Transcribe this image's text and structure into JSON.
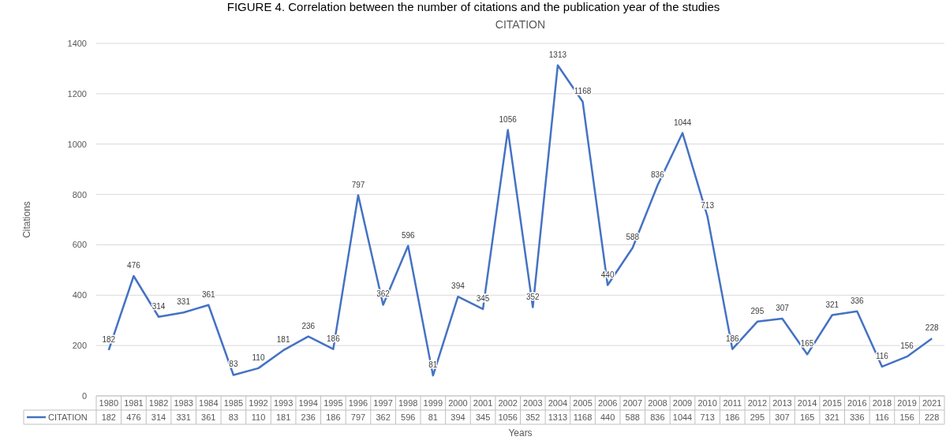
{
  "chart_data": {
    "type": "line",
    "title": "CITATION",
    "xlabel": "Years",
    "ylabel": "Citations",
    "annotations": [
      "FIGURE 4. Correlation between the number of citations and the publication year of the studies",
      {
        "text": "182",
        "x": "1980",
        "y": 182
      },
      {
        "text": "476",
        "x": "1981",
        "y": 476
      },
      {
        "text": "314",
        "x": "1982",
        "y": 314
      },
      {
        "text": "331",
        "x": "1983",
        "y": 331
      },
      {
        "text": "361",
        "x": "1984",
        "y": 361
      },
      {
        "text": "83",
        "x": "1985",
        "y": 83
      },
      {
        "text": "110",
        "x": "1992",
        "y": 110
      },
      {
        "text": "181",
        "x": "1993",
        "y": 181
      },
      {
        "text": "236",
        "x": "1994",
        "y": 236
      },
      {
        "text": "186",
        "x": "1995",
        "y": 186
      },
      {
        "text": "797",
        "x": "1996",
        "y": 797
      },
      {
        "text": "362",
        "x": "1997",
        "y": 362
      },
      {
        "text": "596",
        "x": "1998",
        "y": 596
      },
      {
        "text": "81",
        "x": "1999",
        "y": 81
      },
      {
        "text": "394",
        "x": "2000",
        "y": 394
      },
      {
        "text": "345",
        "x": "2001",
        "y": 345
      },
      {
        "text": "1056",
        "x": "2002",
        "y": 1056
      },
      {
        "text": "352",
        "x": "2003",
        "y": 352
      },
      {
        "text": "1313",
        "x": "2004",
        "y": 1313
      },
      {
        "text": "1168",
        "x": "2005",
        "y": 1168
      },
      {
        "text": "440",
        "x": "2006",
        "y": 440
      },
      {
        "text": "588",
        "x": "2007",
        "y": 588
      },
      {
        "text": "836",
        "x": "2008",
        "y": 836
      },
      {
        "text": "1044",
        "x": "2009",
        "y": 1044
      },
      {
        "text": "713",
        "x": "2010",
        "y": 713
      },
      {
        "text": "186",
        "x": "2011",
        "y": 186
      },
      {
        "text": "295",
        "x": "2012",
        "y": 295
      },
      {
        "text": "307",
        "x": "2013",
        "y": 307
      },
      {
        "text": "165",
        "x": "2014",
        "y": 165
      },
      {
        "text": "321",
        "x": "2015",
        "y": 321
      },
      {
        "text": "336",
        "x": "2016",
        "y": 336
      },
      {
        "text": "116",
        "x": "2018",
        "y": 116
      },
      {
        "text": "156",
        "x": "2019",
        "y": 156
      },
      {
        "text": "228",
        "x": "2021",
        "y": 228
      }
    ],
    "categories": [
      "1980",
      "1981",
      "1982",
      "1983",
      "1984",
      "1985",
      "1992",
      "1993",
      "1994",
      "1995",
      "1996",
      "1997",
      "1998",
      "1999",
      "2000",
      "2001",
      "2002",
      "2003",
      "2004",
      "2005",
      "2006",
      "2007",
      "2008",
      "2009",
      "2010",
      "2011",
      "2012",
      "2013",
      "2014",
      "2015",
      "2016",
      "2018",
      "2019",
      "2021"
    ],
    "series": [
      {
        "name": "CITATION",
        "color": "#4472c4",
        "values": [
          182,
          476,
          314,
          331,
          361,
          83,
          110,
          181,
          236,
          186,
          797,
          362,
          596,
          81,
          394,
          345,
          1056,
          352,
          1313,
          1168,
          440,
          588,
          836,
          1044,
          713,
          186,
          295,
          307,
          165,
          321,
          336,
          116,
          156,
          228
        ]
      }
    ],
    "ylim": [
      0,
      1400
    ],
    "yticks": [
      0,
      200,
      400,
      600,
      800,
      1000,
      1200,
      1400
    ],
    "grid": "y",
    "legend": "bottom",
    "data_labels": true,
    "marker": "none",
    "line_style": "solid"
  }
}
